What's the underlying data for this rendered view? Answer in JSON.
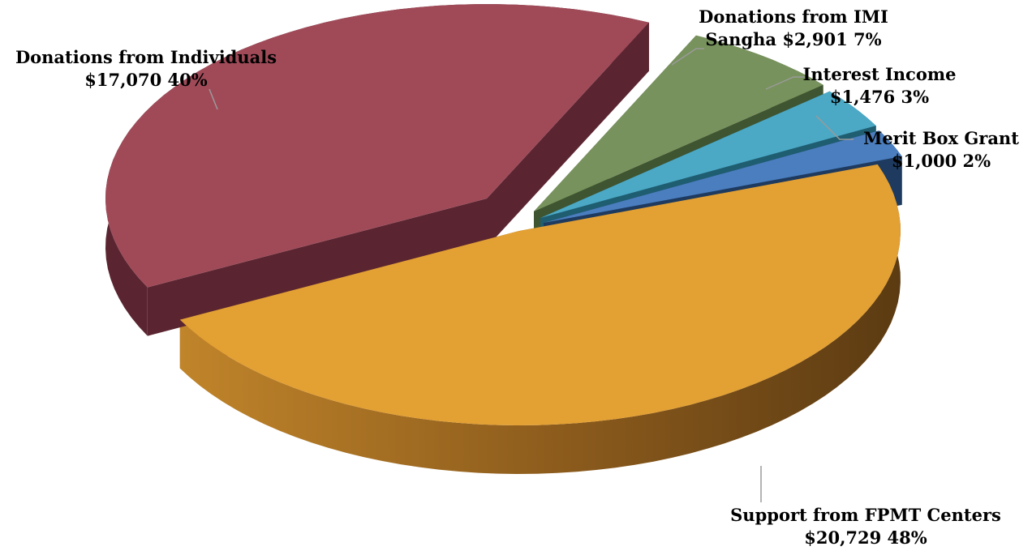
{
  "chart_data": {
    "type": "pie",
    "title": "",
    "series": [
      {
        "name": "",
        "slices": [
          {
            "label": "Support from FPMT Centers",
            "value": 20729,
            "value_text": "$20,729",
            "percent": 48,
            "percent_text": "48%",
            "color": "#E3A033",
            "side_color": "#7a4f17"
          },
          {
            "label": "Donations from Individuals",
            "value": 17070,
            "value_text": "$17,070",
            "percent": 40,
            "percent_text": "40%",
            "color": "#A04A58",
            "side_color": "#5a2531"
          },
          {
            "label": "Donations from IMI Sangha",
            "value": 2901,
            "value_text": "$2,901",
            "percent": 7,
            "percent_text": "7%",
            "color": "#77925C",
            "side_color": "#3f5430"
          },
          {
            "label": "Interest Income",
            "value": 1476,
            "value_text": "$1,476",
            "percent": 3,
            "percent_text": "3%",
            "color": "#4BA9C6",
            "side_color": "#1f5d70"
          },
          {
            "label": "Merit Box Grant",
            "value": 1000,
            "value_text": "$1,000",
            "percent": 2,
            "percent_text": "2%",
            "color": "#4A7EBF",
            "side_color": "#1e3a5e"
          }
        ]
      }
    ],
    "style": "3d-exploded",
    "legend": "none",
    "data_labels": "outside-with-leaders"
  },
  "labels": {
    "support_line1": "Support from FPMT Centers",
    "support_line2": "$20,729 48%",
    "individuals_line1": "Donations from Individuals",
    "individuals_line2": "$17,070 40%",
    "imi_line1": "Donations from IMI",
    "imi_line2": "Sangha  $2,901 7%",
    "interest_line1": "Interest Income",
    "interest_line2": "$1,476 3%",
    "merit_line1": "Merit Box Grant",
    "merit_line2": "$1,000 2%"
  }
}
